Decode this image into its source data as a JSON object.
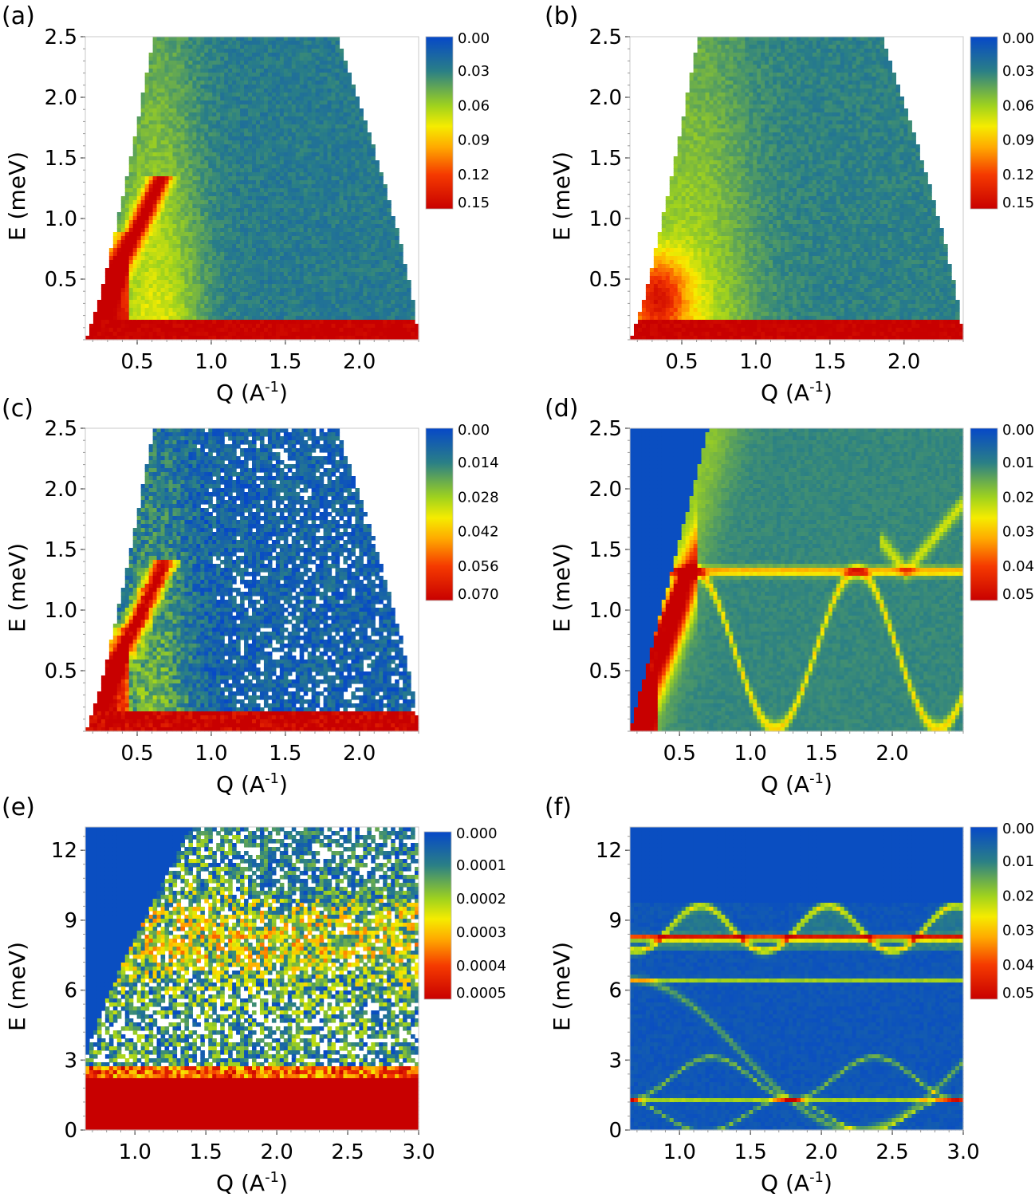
{
  "chart_data": [
    {
      "panel": "(a)",
      "type": "heatmap",
      "xlabel": "Q (A",
      "xlabel_sup": "-1",
      "xlabel_end": ")",
      "ylabel": "E (meV)",
      "xlim": [
        0.15,
        2.4
      ],
      "ylim": [
        0,
        2.5
      ],
      "xticks": [
        0.5,
        1.0,
        1.5,
        2.0
      ],
      "xtick_labels": [
        "0.5",
        "1.0",
        "1.5",
        "2.0"
      ],
      "yticks": [
        0.5,
        1.0,
        1.5,
        2.0,
        2.5
      ],
      "ytick_labels": [
        "0.5",
        "1.0",
        "1.5",
        "2.0",
        "2.5"
      ],
      "colorbar": {
        "min": 0.0,
        "max": 0.15,
        "labels": [
          "0.00",
          "0.03",
          "0.06",
          "0.09",
          "0.12",
          "0.15"
        ]
      },
      "pattern": "powder-mode"
    },
    {
      "panel": "(b)",
      "type": "heatmap",
      "xlabel": "Q (A",
      "xlabel_sup": "-1",
      "xlabel_end": ")",
      "ylabel": "E (meV)",
      "xlim": [
        0.15,
        2.4
      ],
      "ylim": [
        0,
        2.5
      ],
      "xticks": [
        0.5,
        1.0,
        1.5,
        2.0
      ],
      "xtick_labels": [
        "0.5",
        "1.0",
        "1.5",
        "2.0"
      ],
      "yticks": [
        0.5,
        1.0,
        1.5,
        2.0,
        2.5
      ],
      "ytick_labels": [
        "0.5",
        "1.0",
        "1.5",
        "2.0",
        "2.5"
      ],
      "colorbar": {
        "min": 0.0,
        "max": 0.15,
        "labels": [
          "0.00",
          "0.03",
          "0.06",
          "0.09",
          "0.12",
          "0.15"
        ]
      },
      "pattern": "powder-diffuse"
    },
    {
      "panel": "(c)",
      "type": "heatmap",
      "xlabel": "Q (A",
      "xlabel_sup": "-1",
      "xlabel_end": ")",
      "ylabel": "E (meV)",
      "xlim": [
        0.15,
        2.4
      ],
      "ylim": [
        0,
        2.5
      ],
      "xticks": [
        0.5,
        1.0,
        1.5,
        2.0
      ],
      "xtick_labels": [
        "0.5",
        "1.0",
        "1.5",
        "2.0"
      ],
      "yticks": [
        0.5,
        1.0,
        1.5,
        2.0,
        2.5
      ],
      "ytick_labels": [
        "0.5",
        "1.0",
        "1.5",
        "2.0",
        "2.5"
      ],
      "colorbar": {
        "min": 0.0,
        "max": 0.07,
        "labels": [
          "0.00",
          "0.014",
          "0.028",
          "0.042",
          "0.056",
          "0.070"
        ]
      },
      "pattern": "powder-mode-noisy"
    },
    {
      "panel": "(d)",
      "type": "heatmap",
      "xlabel": "Q (A",
      "xlabel_sup": "-1",
      "xlabel_end": ")",
      "ylabel": "E (meV)",
      "xlim": [
        0.15,
        2.5
      ],
      "ylim": [
        0,
        2.5
      ],
      "xticks": [
        0.5,
        1.0,
        1.5,
        2.0
      ],
      "xtick_labels": [
        "0.5",
        "1.0",
        "1.5",
        "2.0"
      ],
      "yticks": [
        0.5,
        1.0,
        1.5,
        2.0,
        2.5
      ],
      "ytick_labels": [
        "0.5",
        "1.0",
        "1.5",
        "2.0",
        "2.5"
      ],
      "colorbar": {
        "min": 0.0,
        "max": 0.05,
        "labels": [
          "0.00",
          "0.01",
          "0.02",
          "0.03",
          "0.04",
          "0.05"
        ]
      },
      "flat_band_meV": 1.32,
      "pattern": "calc-low"
    },
    {
      "panel": "(e)",
      "type": "heatmap",
      "xlabel": "Q (A",
      "xlabel_sup": "-1",
      "xlabel_end": ")",
      "ylabel": "E (meV)",
      "xlim": [
        0.65,
        3.0
      ],
      "ylim": [
        0,
        13
      ],
      "xticks": [
        1.0,
        1.5,
        2.0,
        2.5,
        3.0
      ],
      "xtick_labels": [
        "1.0",
        "1.5",
        "2.0",
        "2.5",
        "3.0"
      ],
      "yticks": [
        0,
        3,
        6,
        9,
        12
      ],
      "ytick_labels": [
        "0",
        "3",
        "6",
        "9",
        "12"
      ],
      "colorbar": {
        "min": 0.0,
        "max": 0.0005,
        "labels": [
          "0.000",
          "0.0001",
          "0.0002",
          "0.0003",
          "0.0004",
          "0.0005"
        ]
      },
      "pattern": "high-noisy"
    },
    {
      "panel": "(f)",
      "type": "heatmap",
      "xlabel": "Q (A",
      "xlabel_sup": "-1",
      "xlabel_end": ")",
      "ylabel": "E (meV)",
      "xlim": [
        0.65,
        3.0
      ],
      "ylim": [
        0,
        13
      ],
      "xticks": [
        1.0,
        1.5,
        2.0,
        2.5,
        3.0
      ],
      "xtick_labels": [
        "1.0",
        "1.5",
        "2.0",
        "2.5",
        "3.0"
      ],
      "yticks": [
        0,
        3,
        6,
        9,
        12
      ],
      "ytick_labels": [
        "0",
        "3",
        "6",
        "9",
        "12"
      ],
      "colorbar": {
        "min": 0.0,
        "max": 0.05,
        "labels": [
          "0.00",
          "0.01",
          "0.02",
          "0.03",
          "0.04",
          "0.05"
        ]
      },
      "flat_bands_meV": [
        1.32,
        6.45,
        8.3
      ],
      "pattern": "calc-high"
    }
  ]
}
